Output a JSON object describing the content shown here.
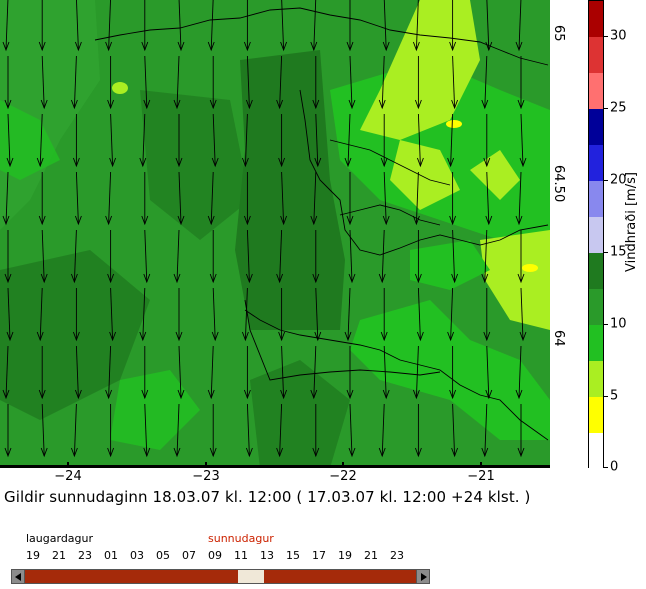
{
  "map": {
    "longitude_labels": [
      "−24",
      "−23",
      "−22",
      "−21"
    ],
    "latitude_labels": [
      "65",
      "64.50",
      "64"
    ],
    "valid_time_text": "Gildir sunnudaginn 18.03.07 kl. 12:00 ( 17.03.07 kl. 12:00 +24 klst. )",
    "fill_colors": {
      "base": "#2a9a2a",
      "dark": "#1f7a1f",
      "mid": "#33aa33",
      "bright": "#22c022",
      "yellowgreen": "#aaee22",
      "yellow": "#ffff00",
      "coast": "#000000"
    },
    "wind_direction": "north-to-south arrows"
  },
  "colorbar": {
    "title": "Vindhraði [m/s]",
    "tick_labels": [
      "0",
      "5",
      "10",
      "15",
      "20",
      "25",
      "30"
    ],
    "tick_values": [
      0,
      5,
      10,
      15,
      20,
      25,
      30
    ],
    "range": [
      0,
      32.5
    ],
    "bands": [
      {
        "from": 0,
        "to": 2.5,
        "color": "#ffffff"
      },
      {
        "from": 2.5,
        "to": 5,
        "color": "#ffff00"
      },
      {
        "from": 5,
        "to": 7.5,
        "color": "#aaee22"
      },
      {
        "from": 7.5,
        "to": 10,
        "color": "#22c022"
      },
      {
        "from": 10,
        "to": 12.5,
        "color": "#2a9a2a"
      },
      {
        "from": 12.5,
        "to": 15,
        "color": "#1f7a1f"
      },
      {
        "from": 15,
        "to": 17.5,
        "color": "#c8c8f0"
      },
      {
        "from": 17.5,
        "to": 20,
        "color": "#8888ee"
      },
      {
        "from": 20,
        "to": 22.5,
        "color": "#2222dd"
      },
      {
        "from": 22.5,
        "to": 25,
        "color": "#000099"
      },
      {
        "from": 25,
        "to": 27.5,
        "color": "#ff7070"
      },
      {
        "from": 27.5,
        "to": 30,
        "color": "#dd3333"
      },
      {
        "from": 30,
        "to": 32.5,
        "color": "#aa0000"
      }
    ]
  },
  "timeline": {
    "day1": "laugardagur",
    "day2": "sunnudagur",
    "day1_color": "#000000",
    "day2_color": "#cc2200",
    "hours": [
      "19",
      "21",
      "23",
      "01",
      "03",
      "05",
      "07",
      "09",
      "11",
      "13",
      "15",
      "17",
      "19",
      "21",
      "23"
    ],
    "bar_color": "#a52a0a",
    "handle_color": "#f0e8d8"
  }
}
